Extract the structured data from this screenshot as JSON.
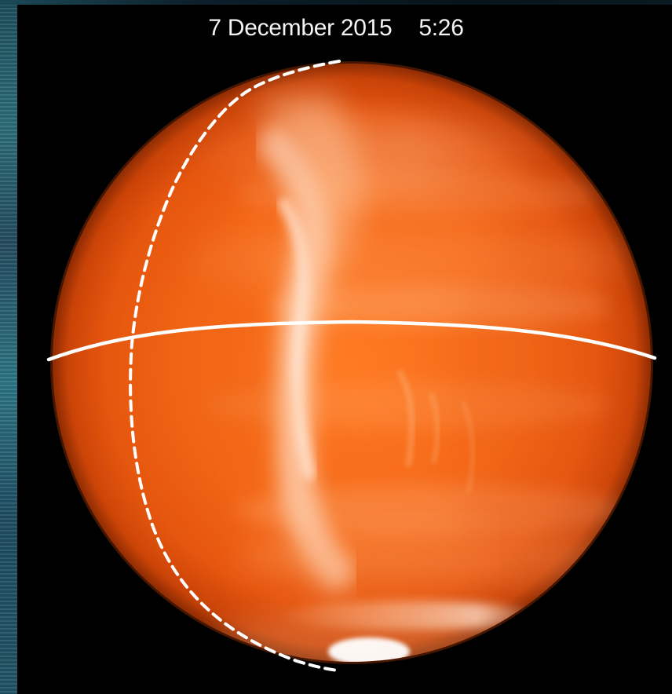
{
  "image": {
    "date": "7 December 2015",
    "time": "5:26"
  },
  "colors": {
    "background": "#000000",
    "planet_edge": "#c94a0b",
    "planet_mid": "#f06c1c",
    "planet_bright": "#ffe1c0",
    "overlay_line": "#ffffff",
    "edge_strip": "#2d7684"
  }
}
